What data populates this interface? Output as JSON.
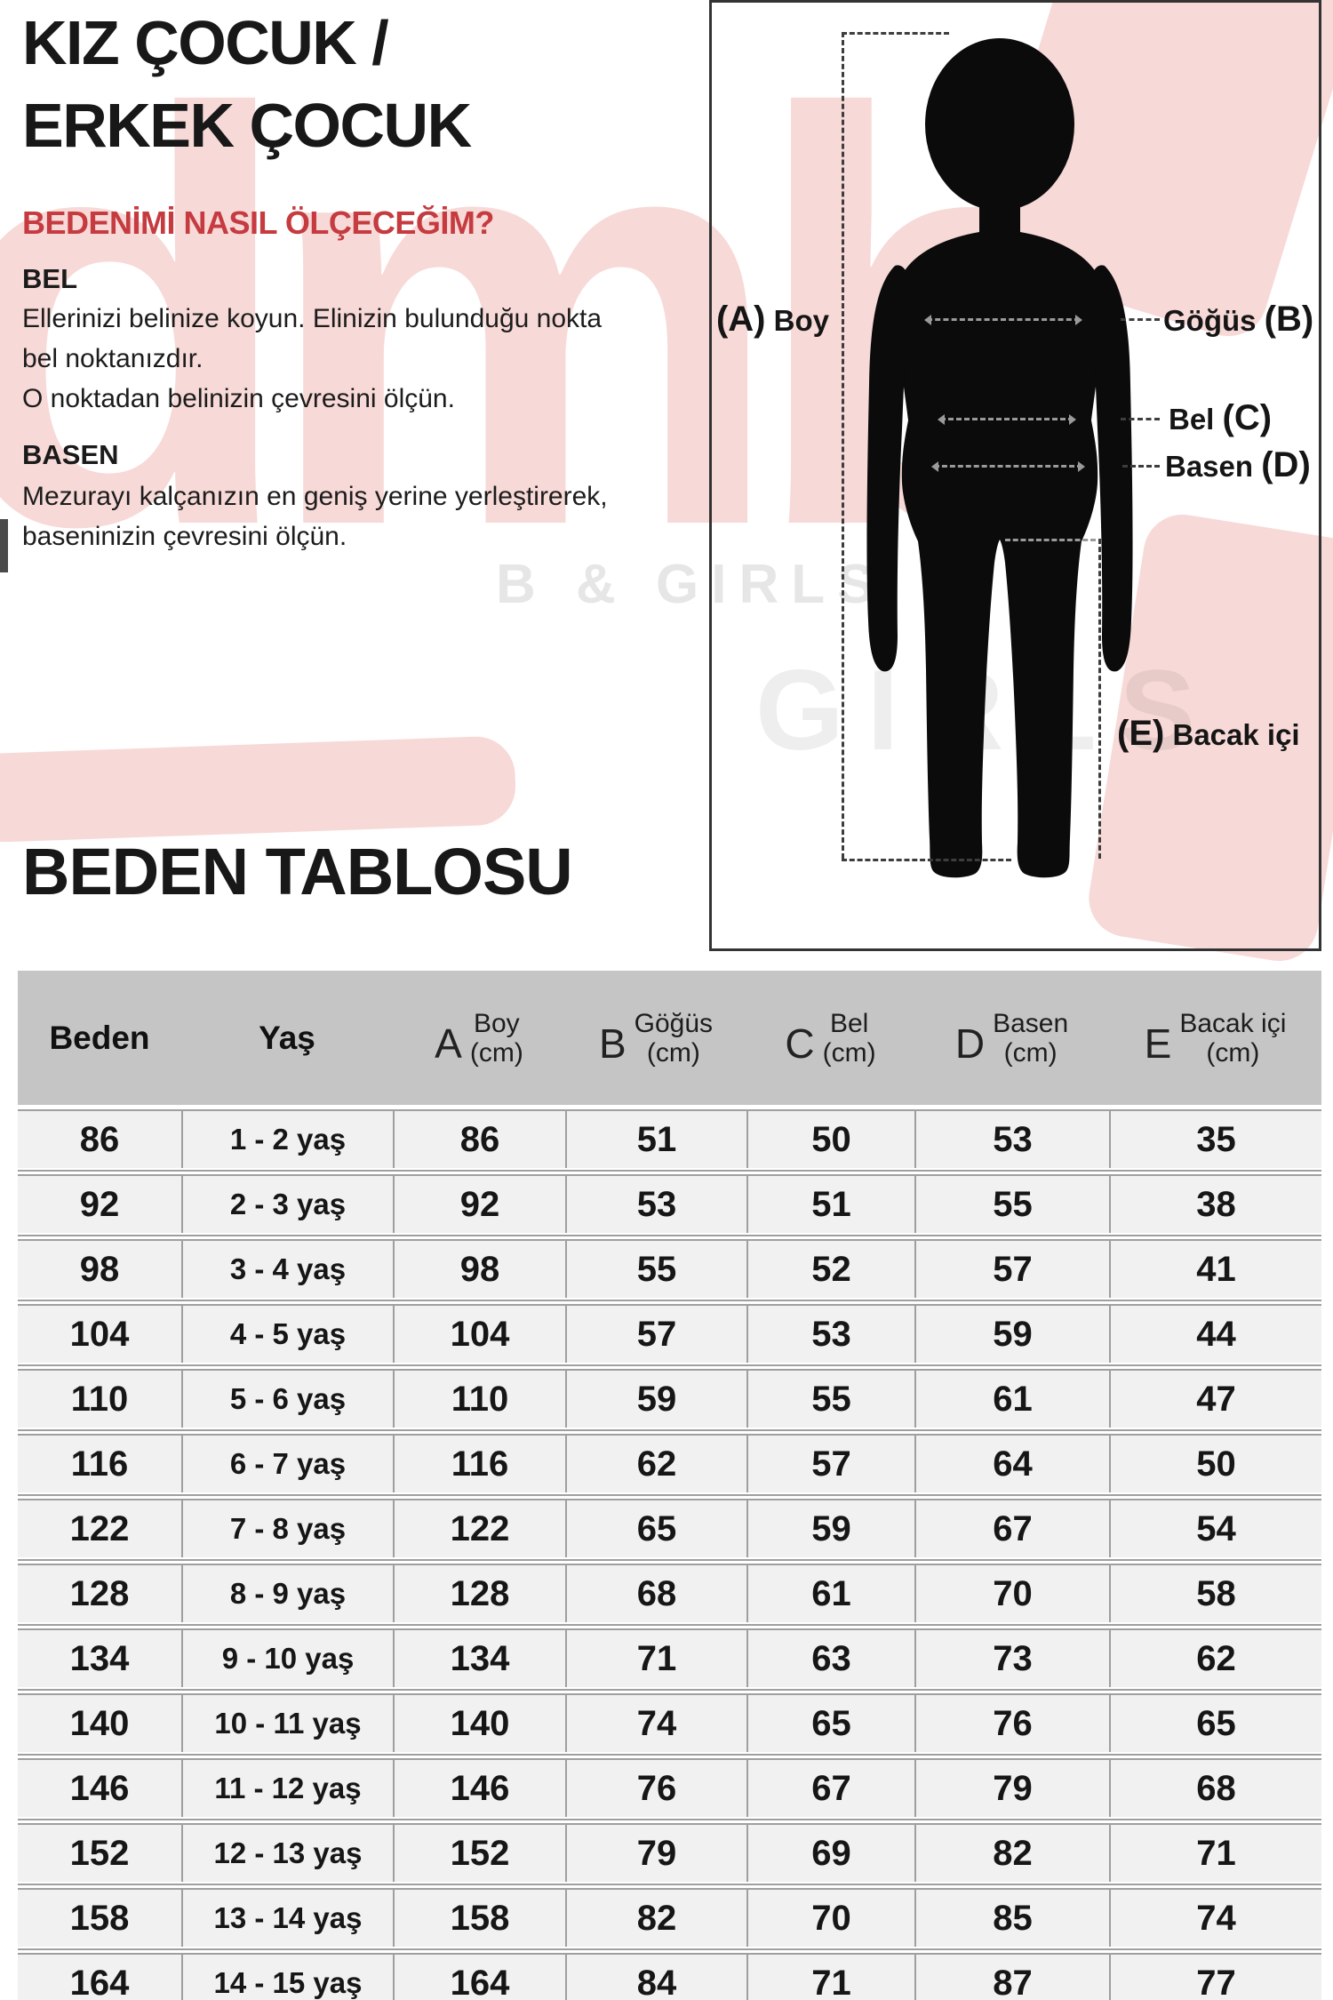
{
  "header": {
    "title_line1": "KIZ ÇOCUK /",
    "title_line2": "ERKEK ÇOCUK",
    "measure_heading": "BEDENİMİ NASIL ÖLÇECEĞİM?",
    "bel_label": "BEL",
    "bel_text": "Ellerinizi belinize koyun. Elinizin bulunduğu nokta\nbel noktanızdır.\nO noktadan belinizin çevresini ölçün.",
    "basen_label": "BASEN",
    "basen_text": "Mezurayı kalçanızın en geniş yerine yerleştirerek,\nbaseninizin çevresini ölçün."
  },
  "watermark": {
    "pink_text": "dmb",
    "gray_text": "B & GIRLS",
    "gray_text2": "GIRLS",
    "pink_color": "#f7d9d7"
  },
  "figure": {
    "label_a_prefix": "(A)",
    "label_a": "Boy",
    "label_b": "Göğüs",
    "label_b_suffix": "(B)",
    "label_c": "Bel",
    "label_c_suffix": "(C)",
    "label_d": "Basen",
    "label_d_suffix": "(D)",
    "label_e_prefix": "(E)",
    "label_e": "Bacak içi"
  },
  "table": {
    "title": "BEDEN TABLOSU",
    "col_beden": "Beden",
    "col_yas": "Yaş",
    "measure_cols": [
      {
        "letter": "A",
        "line1": "Boy",
        "line2": "(cm)"
      },
      {
        "letter": "B",
        "line1": "Göğüs",
        "line2": "(cm)"
      },
      {
        "letter": "C",
        "line1": "Bel",
        "line2": "(cm)"
      },
      {
        "letter": "D",
        "line1": "Basen",
        "line2": "(cm)"
      },
      {
        "letter": "E",
        "line1": "Bacak içi",
        "line2": "(cm)"
      }
    ],
    "rows": [
      [
        "86",
        "1 - 2 yaş",
        "86",
        "51",
        "50",
        "53",
        "35"
      ],
      [
        "92",
        "2 - 3 yaş",
        "92",
        "53",
        "51",
        "55",
        "38"
      ],
      [
        "98",
        "3 - 4 yaş",
        "98",
        "55",
        "52",
        "57",
        "41"
      ],
      [
        "104",
        "4 - 5 yaş",
        "104",
        "57",
        "53",
        "59",
        "44"
      ],
      [
        "110",
        "5 - 6 yaş",
        "110",
        "59",
        "55",
        "61",
        "47"
      ],
      [
        "116",
        "6 - 7 yaş",
        "116",
        "62",
        "57",
        "64",
        "50"
      ],
      [
        "122",
        "7 - 8 yaş",
        "122",
        "65",
        "59",
        "67",
        "54"
      ],
      [
        "128",
        "8 - 9 yaş",
        "128",
        "68",
        "61",
        "70",
        "58"
      ],
      [
        "134",
        "9 - 10 yaş",
        "134",
        "71",
        "63",
        "73",
        "62"
      ],
      [
        "140",
        "10 - 11 yaş",
        "140",
        "74",
        "65",
        "76",
        "65"
      ],
      [
        "146",
        "11 - 12 yaş",
        "146",
        "76",
        "67",
        "79",
        "68"
      ],
      [
        "152",
        "12 - 13 yaş",
        "152",
        "79",
        "69",
        "82",
        "71"
      ],
      [
        "158",
        "13 - 14 yaş",
        "158",
        "82",
        "70",
        "85",
        "74"
      ],
      [
        "164",
        "14 - 15 yaş",
        "164",
        "84",
        "71",
        "87",
        "77"
      ]
    ]
  }
}
